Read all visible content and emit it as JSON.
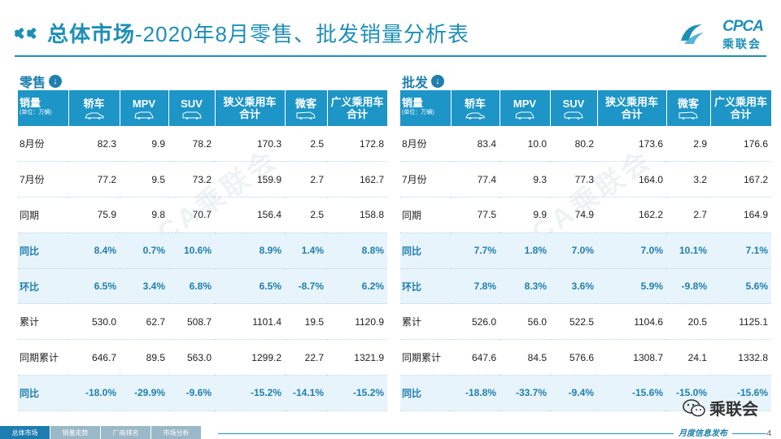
{
  "title": {
    "strong": "总体市场",
    "rest": "-2020年8月零售、批发销量分析表"
  },
  "logo": {
    "brand": "CPCA",
    "cn": "乘联会"
  },
  "watermark": "CPCA乘联会",
  "columns": [
    "销量",
    "轿车",
    "MPV",
    "SUV",
    "狭义乘用车合计",
    "微客",
    "广义乘用车合计"
  ],
  "columns_split": {
    "first_main": "销量",
    "first_sub": "(单位：万辆)",
    "narrow_line1": "狭义乘用车",
    "narrow_line2": "合计",
    "broad_line1": "广义乘用车",
    "broad_line2": "合计"
  },
  "retail": {
    "heading": "零售",
    "rows": [
      {
        "label": "8月份",
        "pct": false,
        "v": [
          "82.3",
          "9.9",
          "78.2",
          "170.3",
          "2.5",
          "172.8"
        ]
      },
      {
        "label": "7月份",
        "pct": false,
        "v": [
          "77.2",
          "9.5",
          "73.2",
          "159.9",
          "2.7",
          "162.7"
        ]
      },
      {
        "label": "同期",
        "pct": false,
        "v": [
          "75.9",
          "9.8",
          "70.7",
          "156.4",
          "2.5",
          "158.8"
        ]
      },
      {
        "label": "同比",
        "pct": true,
        "v": [
          "8.4%",
          "0.7%",
          "10.6%",
          "8.9%",
          "1.4%",
          "8.8%"
        ]
      },
      {
        "label": "环比",
        "pct": true,
        "v": [
          "6.5%",
          "3.4%",
          "6.8%",
          "6.5%",
          "-8.7%",
          "6.2%"
        ]
      },
      {
        "label": "累计",
        "pct": false,
        "v": [
          "530.0",
          "62.7",
          "508.7",
          "1101.4",
          "19.5",
          "1120.9"
        ]
      },
      {
        "label": "同期累计",
        "pct": false,
        "v": [
          "646.7",
          "89.5",
          "563.0",
          "1299.2",
          "22.7",
          "1321.9"
        ]
      },
      {
        "label": "同比",
        "pct": true,
        "v": [
          "-18.0%",
          "-29.9%",
          "-9.6%",
          "-15.2%",
          "-14.1%",
          "-15.2%"
        ]
      }
    ]
  },
  "wholesale": {
    "heading": "批发",
    "rows": [
      {
        "label": "8月份",
        "pct": false,
        "v": [
          "83.4",
          "10.0",
          "80.2",
          "173.6",
          "2.9",
          "176.6"
        ]
      },
      {
        "label": "7月份",
        "pct": false,
        "v": [
          "77.4",
          "9.3",
          "77.3",
          "164.0",
          "3.2",
          "167.2"
        ]
      },
      {
        "label": "同期",
        "pct": false,
        "v": [
          "77.5",
          "9.9",
          "74.9",
          "162.2",
          "2.7",
          "164.9"
        ]
      },
      {
        "label": "同比",
        "pct": true,
        "v": [
          "7.7%",
          "1.8%",
          "7.0%",
          "7.0%",
          "10.1%",
          "7.1%"
        ]
      },
      {
        "label": "环比",
        "pct": true,
        "v": [
          "7.8%",
          "8.3%",
          "3.6%",
          "5.9%",
          "-9.8%",
          "5.6%"
        ]
      },
      {
        "label": "累计",
        "pct": false,
        "v": [
          "526.0",
          "56.0",
          "522.5",
          "1104.6",
          "20.5",
          "1125.1"
        ]
      },
      {
        "label": "同期累计",
        "pct": false,
        "v": [
          "647.6",
          "84.5",
          "576.6",
          "1308.7",
          "24.1",
          "1332.8"
        ]
      },
      {
        "label": "同比",
        "pct": true,
        "v": [
          "-18.8%",
          "-33.7%",
          "-9.4%",
          "-15.6%",
          "-15.0%",
          "-15.6%"
        ]
      }
    ]
  },
  "nav": [
    "总体市场",
    "销量走势",
    "厂商排名",
    "市场分析"
  ],
  "footer_tag": "月度信息发布",
  "page_number": "4",
  "wechat_label": "乘联会",
  "colors": {
    "accent": "#1d95c7",
    "pct_bg": "#e8f4fb",
    "title": "#1e8fb8"
  }
}
